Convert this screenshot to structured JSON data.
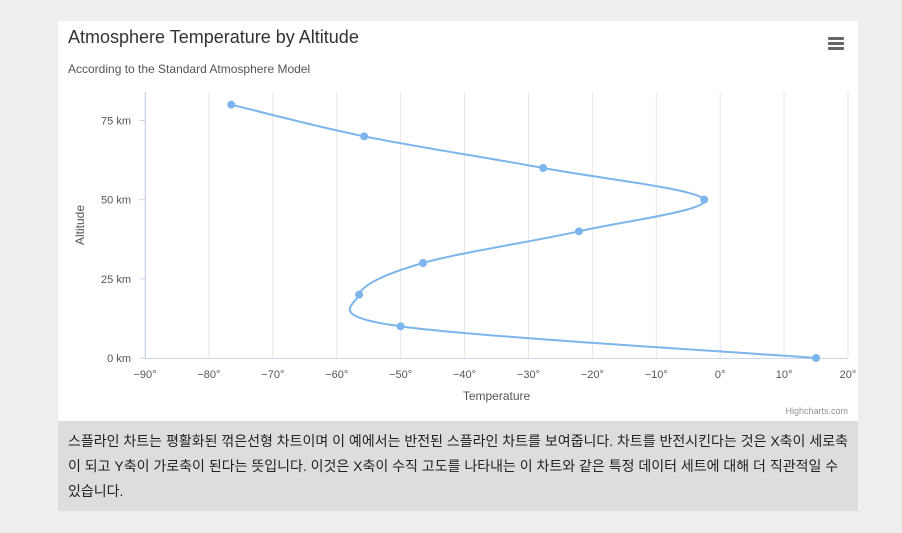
{
  "chart_data": {
    "type": "line",
    "inverted": true,
    "title": "Atmosphere Temperature by Altitude",
    "subtitle": "According to the Standard Atmosphere Model",
    "xlabel": "Altitude",
    "ylabel": "Temperature",
    "x_ticks": [
      "0 km",
      "25 km",
      "50 km",
      "75 km"
    ],
    "x_tick_values": [
      0,
      25,
      50,
      75
    ],
    "y_ticks": [
      "−90°",
      "−80°",
      "−70°",
      "−60°",
      "−50°",
      "−40°",
      "−30°",
      "−20°",
      "−10°",
      "0°",
      "10°",
      "20°"
    ],
    "y_tick_values": [
      -90,
      -80,
      -70,
      -60,
      -50,
      -40,
      -30,
      -20,
      -10,
      0,
      10,
      20
    ],
    "xlim": [
      0,
      84
    ],
    "ylim": [
      -90,
      20
    ],
    "grid": true,
    "legend": "none",
    "series": [
      {
        "color": "#7cb5ec",
        "points": [
          {
            "x": 0,
            "y": 15
          },
          {
            "x": 10,
            "y": -50
          },
          {
            "x": 20,
            "y": -56.5
          },
          {
            "x": 30,
            "y": -46.5
          },
          {
            "x": 40,
            "y": -22.1
          },
          {
            "x": 50,
            "y": -2.5
          },
          {
            "x": 60,
            "y": -27.7
          },
          {
            "x": 70,
            "y": -55.7
          },
          {
            "x": 80,
            "y": -76.5
          }
        ]
      }
    ]
  },
  "menu_icon": "hamburger-menu-icon",
  "credits": "Highcharts.com",
  "description": "스플라인 차트는 평활화된 꺾은선형 차트이며 이 예에서는 반전된 스플라인 차트를 보여줍니다. 차트를 반전시킨다는 것은 X축이 세로축이 되고 Y축이 가로축이 된다는 뜻입니다. 이것은 X축이 수직 고도를 나타내는 이 차트와 같은 특정 데이터 세트에 대해 더 직관적일 수 있습니다."
}
